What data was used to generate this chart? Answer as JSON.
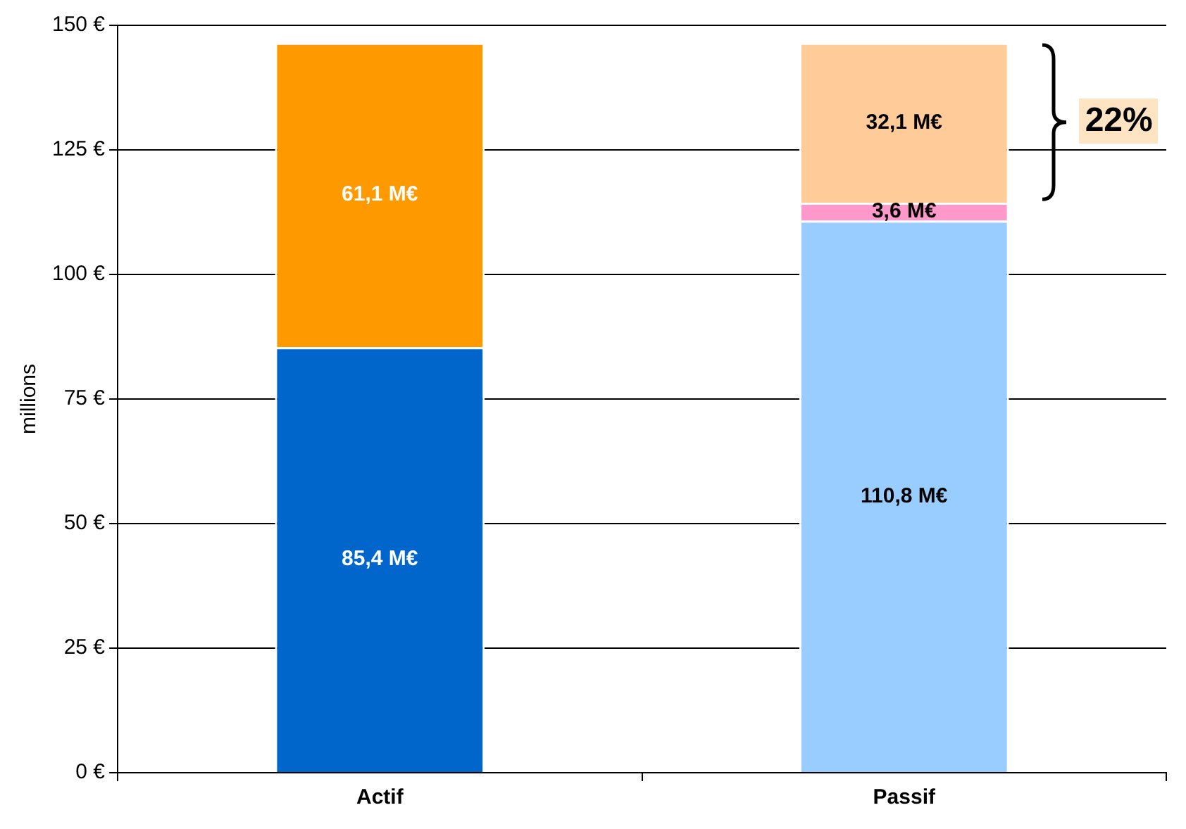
{
  "chart_data": {
    "type": "bar",
    "stacked": true,
    "ylabel": "millions",
    "categories": [
      "Actif",
      "Passif"
    ],
    "series": [
      {
        "color": "#0066cc",
        "values": [
          85.4,
          null
        ],
        "value_labels": [
          "85,4 M€",
          null
        ]
      },
      {
        "color": "#ff9900",
        "values": [
          61.1,
          null
        ],
        "value_labels": [
          "61,1 M€",
          null
        ]
      },
      {
        "color": "#99ccff",
        "values": [
          null,
          110.8
        ],
        "value_labels": [
          null,
          "110,8 M€"
        ]
      },
      {
        "color": "#ff99cc",
        "values": [
          null,
          3.6
        ],
        "value_labels": [
          null,
          "3,6 M€"
        ]
      },
      {
        "color": "#ffcc99",
        "values": [
          null,
          32.1
        ],
        "value_labels": [
          null,
          "32,1 M€"
        ]
      }
    ],
    "ylim": [
      0,
      150
    ],
    "yticks": [
      {
        "value": 0,
        "label": "0 €"
      },
      {
        "value": 25,
        "label": "25 €"
      },
      {
        "value": 50,
        "label": "50 €"
      },
      {
        "value": 75,
        "label": "75 €"
      },
      {
        "value": 100,
        "label": "100 €"
      },
      {
        "value": 125,
        "label": "125 €"
      },
      {
        "value": 150,
        "label": "150 €"
      }
    ],
    "grid": "y",
    "legend": false,
    "annotations": [
      "22%"
    ]
  }
}
